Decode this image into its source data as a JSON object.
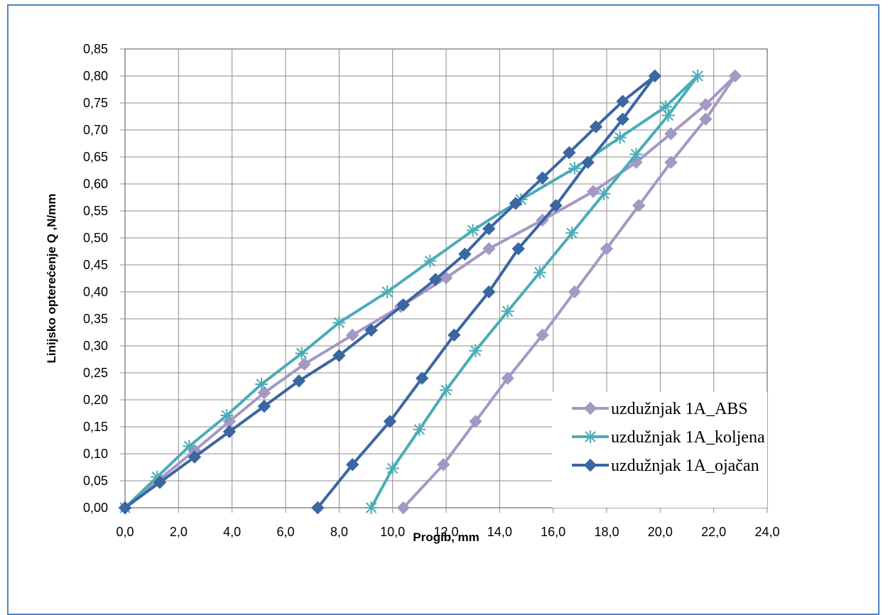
{
  "chart_data": {
    "type": "line",
    "xlabel": "Progib, mm",
    "ylabel": "Linijsko opterećenje Q  ,N/mm",
    "xlim": [
      0,
      24
    ],
    "ylim": [
      0,
      0.85
    ],
    "x_ticks": [
      "0,0",
      "2,0",
      "4,0",
      "6,0",
      "8,0",
      "10,0",
      "12,0",
      "14,0",
      "16,0",
      "18,0",
      "20,0",
      "22,0",
      "24,0"
    ],
    "y_ticks": [
      "0,00",
      "0,05",
      "0,10",
      "0,15",
      "0,20",
      "0,25",
      "0,30",
      "0,35",
      "0,40",
      "0,45",
      "0,50",
      "0,55",
      "0,60",
      "0,65",
      "0,70",
      "0,75",
      "0,80",
      "0,85"
    ],
    "grid": true,
    "legend_position": "bottom-right",
    "series": [
      {
        "name": "uzdužnjak 1A_ABS",
        "color": "#A598C4",
        "marker": "diamond",
        "x": [
          0,
          1.3,
          2.6,
          3.9,
          5.2,
          6.7,
          8.5,
          10.3,
          12.0,
          13.6,
          15.6,
          17.5,
          19.1,
          20.4,
          21.7,
          22.8,
          21.7,
          20.4,
          19.2,
          18.0,
          16.8,
          15.6,
          14.3,
          13.1,
          11.9,
          10.4
        ],
        "y": [
          0,
          0.053,
          0.106,
          0.16,
          0.213,
          0.266,
          0.32,
          0.373,
          0.426,
          0.48,
          0.533,
          0.586,
          0.64,
          0.693,
          0.747,
          0.8,
          0.72,
          0.64,
          0.56,
          0.48,
          0.4,
          0.32,
          0.24,
          0.16,
          0.08,
          0
        ]
      },
      {
        "name": "uzdužnjak 1A_koljena",
        "color": "#4BACB6",
        "marker": "star",
        "x": [
          0,
          1.2,
          2.4,
          3.8,
          5.1,
          6.6,
          8.0,
          9.8,
          11.4,
          13.0,
          14.8,
          16.8,
          18.5,
          20.2,
          21.4,
          20.3,
          19.1,
          17.9,
          16.7,
          15.5,
          14.3,
          13.1,
          12.0,
          11.0,
          10.0,
          9.2
        ],
        "y": [
          0,
          0.057,
          0.114,
          0.171,
          0.229,
          0.286,
          0.343,
          0.4,
          0.457,
          0.514,
          0.571,
          0.629,
          0.686,
          0.743,
          0.8,
          0.727,
          0.655,
          0.582,
          0.509,
          0.436,
          0.364,
          0.291,
          0.218,
          0.145,
          0.073,
          0
        ]
      },
      {
        "name": "uzdužnjak 1A_ojačan",
        "color": "#3A66A2",
        "marker": "diamond",
        "x": [
          0,
          1.3,
          2.6,
          3.9,
          5.2,
          6.5,
          8.0,
          9.2,
          10.4,
          11.6,
          12.7,
          13.6,
          14.6,
          15.6,
          16.6,
          17.6,
          18.6,
          19.8,
          18.6,
          17.3,
          16.1,
          14.7,
          13.6,
          12.3,
          11.1,
          9.9,
          8.5,
          7.2
        ],
        "y": [
          0,
          0.047,
          0.094,
          0.141,
          0.188,
          0.235,
          0.282,
          0.329,
          0.376,
          0.423,
          0.47,
          0.517,
          0.564,
          0.611,
          0.658,
          0.706,
          0.753,
          0.8,
          0.72,
          0.64,
          0.56,
          0.48,
          0.4,
          0.32,
          0.24,
          0.16,
          0.08,
          0
        ]
      }
    ]
  }
}
